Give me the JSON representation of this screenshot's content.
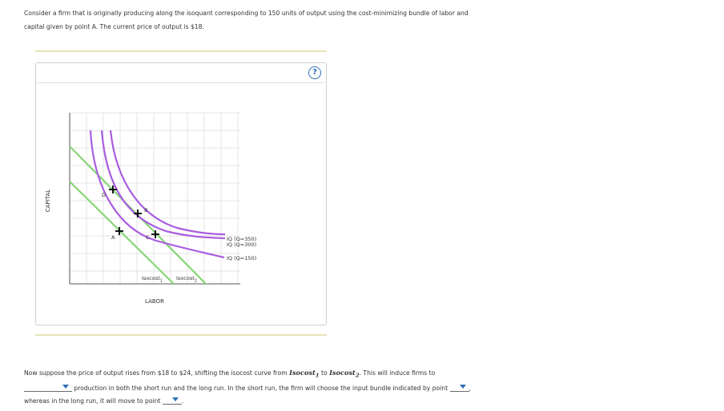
{
  "intro": {
    "line1": "Consider a firm that is originally producing along the isoquant corresponding to 150 units of output using the cost-minimizing bundle of labor and",
    "line2": "capital given by point A. The current price of output is $18."
  },
  "panel": {
    "help_label": "?"
  },
  "graph": {
    "y_axis_label": "CAPITAL",
    "x_axis_label": "LABOR",
    "points": [
      "A",
      "B",
      "C",
      "D"
    ],
    "isoquant_labels": [
      "IQ (Q=350)",
      "IQ (Q=300)",
      "IQ (Q=150)"
    ],
    "isocost_labels": [
      {
        "base": "Isocost",
        "sub": "1"
      },
      {
        "base": "Isocost",
        "sub": "2"
      }
    ],
    "colors": {
      "isoquant": "#a95ee0",
      "isocost": "#86d676",
      "grid": "#e4e4e4",
      "axis": "#555555"
    }
  },
  "question": {
    "part1": "Now suppose the price of output rises from $18 to $24, shifting the isocost curve from",
    "isocost1_base": "Isocost",
    "isocost1_sub": "1",
    "to_word": "to",
    "isocost2_base": "Isocost",
    "isocost2_sub": "2",
    "part2": ". This will induce firms to",
    "part3": "production in both the short run and the long run. In the short run, the firm will choose the input bundle indicated by point",
    "part3_end": ",",
    "part4": "whereas in the long run, it will move to point",
    "part4_end": "."
  }
}
